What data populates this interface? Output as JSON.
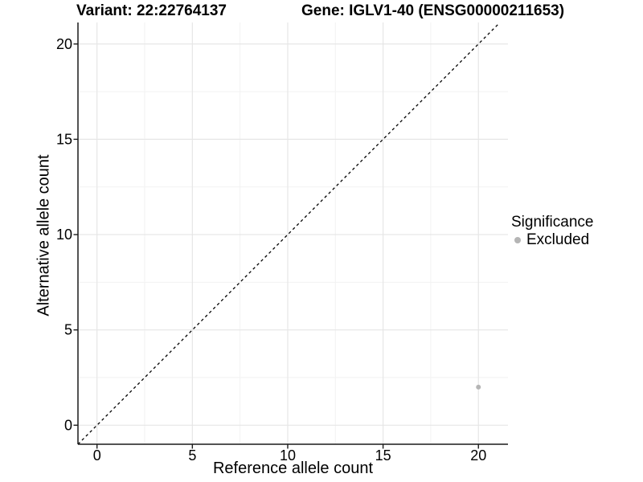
{
  "titles": {
    "variant": "Variant: 22:22764137",
    "gene": "Gene: IGLV1-40 (ENSG00000211653)"
  },
  "legend": {
    "title": "Significance",
    "items": [
      {
        "label": "Excluded",
        "color": "#b5b5b5"
      }
    ]
  },
  "chart_data": {
    "type": "scatter",
    "title": "Variant: 22:22764137    Gene: IGLV1-40 (ENSG00000211653)",
    "xlabel": "Reference allele count",
    "ylabel": "Alternative allele count",
    "xlim": [
      0,
      20
    ],
    "ylim": [
      0,
      20
    ],
    "x_ticks": [
      0,
      5,
      10,
      15,
      20
    ],
    "y_ticks": [
      0,
      5,
      10,
      15,
      20
    ],
    "x_minor_ticks": [
      2.5,
      7.5,
      12.5,
      17.5
    ],
    "y_minor_ticks": [
      2.5,
      7.5,
      12.5,
      17.5
    ],
    "grid": true,
    "legend_position": "right",
    "series": [
      {
        "name": "Excluded",
        "color": "#b5b5b5",
        "points": [
          {
            "x": 20,
            "y": 2
          }
        ]
      }
    ],
    "identity_line": {
      "style": "dashed",
      "color": "#000000",
      "from": [
        -1,
        -1
      ],
      "to": [
        21,
        21
      ]
    },
    "colors": {
      "background": "#ffffff",
      "grid_major": "#e6e6e6",
      "grid_minor": "#f2f2f2",
      "axis_line": "#1a1a1a",
      "tick_text": "#000000"
    }
  }
}
